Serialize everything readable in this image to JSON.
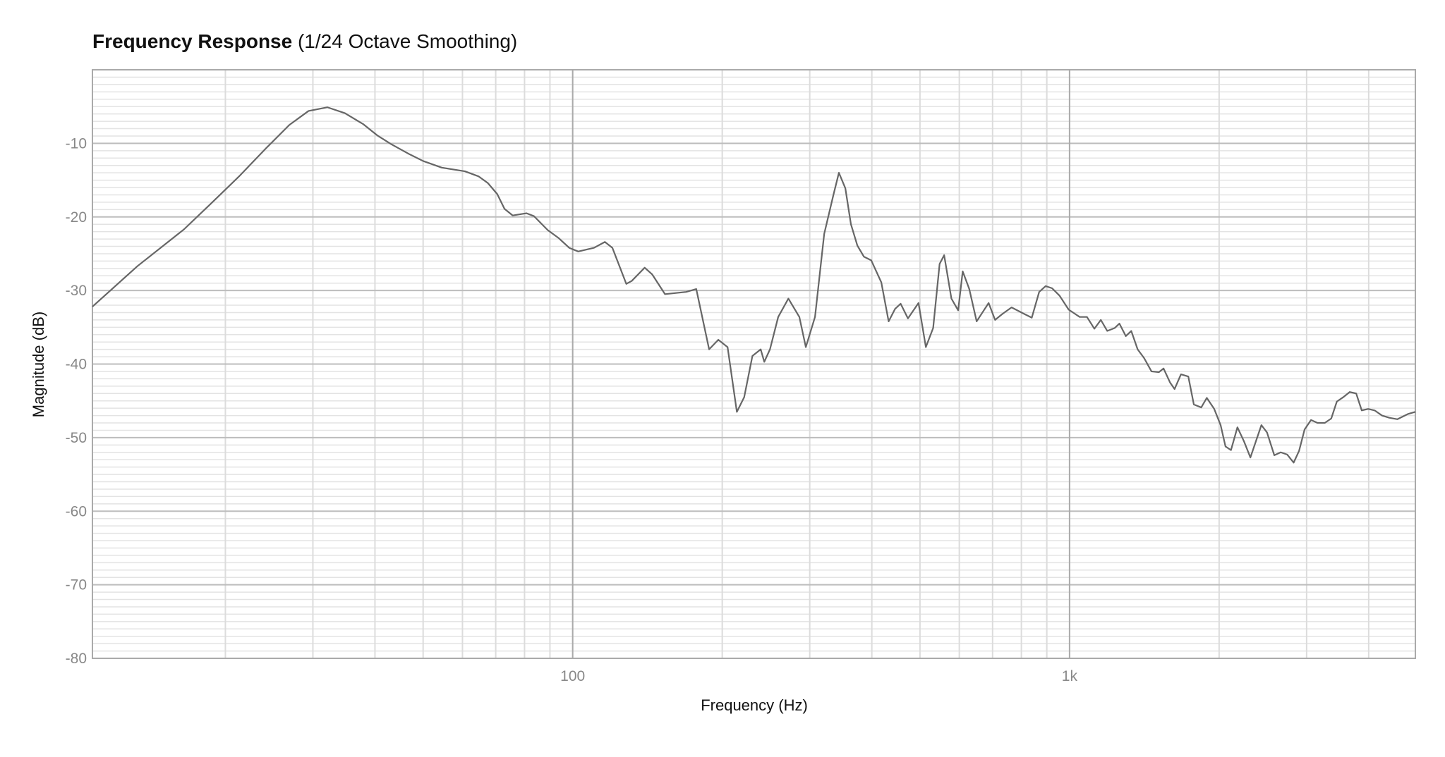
{
  "chart_data": {
    "type": "line",
    "title": "Frequency Response",
    "subtitle": "(1/24 Octave Smoothing)",
    "x_label": "Frequency (Hz)",
    "y_label": "Magnitude (dB)",
    "x_scale": "log",
    "grid": true,
    "color": "#666666",
    "xlim": [
      10.8,
      4966
    ],
    "ylim": [
      -80,
      0
    ],
    "xticks": [
      100,
      {
        "value": 1000,
        "label": "1k"
      }
    ],
    "yticks": [
      -80,
      -70,
      -60,
      -50,
      -40,
      -30,
      -20,
      -10
    ],
    "series": [
      {
        "name": "Magnitude",
        "x": [
          10.8,
          13.3,
          16.5,
          18.7,
          21.3,
          24.2,
          26.9,
          29.4,
          32.1,
          34.8,
          37.9,
          40.4,
          43.1,
          47.0,
          50.0,
          54.5,
          60.7,
          64.7,
          67.5,
          70.5,
          72.9,
          75.7,
          80.7,
          83.6,
          89.1,
          93.8,
          98.4,
          102.6,
          110.4,
          116.1,
          120.2,
          128.2,
          131.5,
          139.6,
          144.5,
          153.4,
          169.1,
          177.3,
          188.2,
          196.4,
          205.0,
          214.0,
          221.4,
          230.0,
          239.0,
          243.0,
          249.5,
          259.2,
          271.7,
          285.9,
          294.6,
          307.4,
          320.8,
          334.8,
          343.4,
          353.8,
          363.1,
          374.1,
          385.5,
          398.9,
          418.0,
          432.4,
          445.5,
          457.1,
          472.9,
          496.6,
          513.8,
          531.5,
          547.6,
          559.3,
          578.4,
          596.8,
          609.5,
          628.3,
          650.2,
          687.3,
          708.2,
          732.3,
          764.4,
          811.1,
          839.5,
          868.7,
          895.3,
          922.5,
          954.7,
          995.8,
          1048,
          1084,
          1122,
          1156,
          1191,
          1233,
          1260,
          1298,
          1331,
          1371,
          1413,
          1462,
          1513,
          1546,
          1593,
          1627,
          1676,
          1734,
          1779,
          1841,
          1889,
          1955,
          2014,
          2060,
          2113,
          2177,
          2244,
          2312,
          2433,
          2497,
          2583,
          2661,
          2742,
          2825,
          2897,
          2972,
          3062,
          3155,
          3264,
          3363,
          3451,
          3556,
          3664,
          3775,
          3873,
          3991,
          4112,
          4255,
          4400,
          4570,
          4795,
          4966
        ],
        "values": [
          -32.2,
          -26.7,
          -21.7,
          -18.2,
          -14.5,
          -10.6,
          -7.5,
          -5.6,
          -5.1,
          -5.9,
          -7.4,
          -8.9,
          -10.1,
          -11.5,
          -12.4,
          -13.3,
          -13.8,
          -14.5,
          -15.4,
          -16.9,
          -18.9,
          -19.8,
          -19.5,
          -19.9,
          -21.8,
          -22.9,
          -24.2,
          -24.7,
          -24.2,
          -23.4,
          -24.2,
          -29.1,
          -28.7,
          -26.9,
          -27.8,
          -30.5,
          -30.2,
          -29.8,
          -38.0,
          -36.7,
          -37.7,
          -46.5,
          -44.5,
          -38.9,
          -38.0,
          -39.7,
          -38.0,
          -33.6,
          -31.1,
          -33.6,
          -37.7,
          -33.6,
          -22.3,
          -17.0,
          -14.0,
          -16.1,
          -21.0,
          -23.9,
          -25.4,
          -25.9,
          -28.9,
          -34.2,
          -32.5,
          -31.8,
          -33.8,
          -31.7,
          -37.7,
          -35.1,
          -26.4,
          -25.2,
          -31.1,
          -32.7,
          -27.4,
          -29.8,
          -34.2,
          -31.7,
          -34.0,
          -33.2,
          -32.3,
          -33.2,
          -33.7,
          -30.2,
          -29.4,
          -29.7,
          -30.7,
          -32.6,
          -33.6,
          -33.6,
          -35.2,
          -34.0,
          -35.5,
          -35.1,
          -34.5,
          -36.2,
          -35.5,
          -38.0,
          -39.2,
          -41.0,
          -41.1,
          -40.6,
          -42.5,
          -43.4,
          -41.4,
          -41.7,
          -45.5,
          -45.9,
          -44.6,
          -46.1,
          -48.3,
          -51.2,
          -51.7,
          -48.6,
          -50.5,
          -52.7,
          -48.3,
          -49.3,
          -52.4,
          -52.0,
          -52.3,
          -53.4,
          -51.8,
          -48.9,
          -47.6,
          -48.0,
          -48.0,
          -47.4,
          -45.1,
          -44.5,
          -43.8,
          -44.0,
          -46.3,
          -46.1,
          -46.3,
          -47.0,
          -47.3,
          -47.5,
          -46.8,
          -46.5
        ]
      }
    ]
  }
}
